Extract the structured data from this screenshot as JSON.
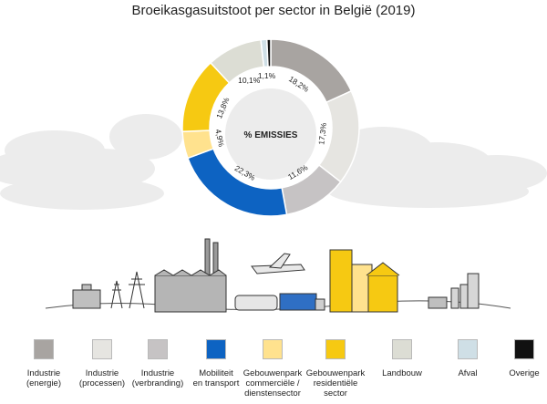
{
  "chart_data": {
    "type": "pie",
    "title": "Broeikasgasuitstoot per sector in België (2019)",
    "center_label": "% EMISSIES",
    "slices": [
      {
        "name": "Industrie (energie)",
        "value": 18.2,
        "label": "18,2%",
        "color": "#a8a4a1"
      },
      {
        "name": "Industrie (processen)",
        "value": 17.3,
        "label": "17,3%",
        "color": "#e6e5e1"
      },
      {
        "name": "Industrie (verbranding)",
        "value": 11.6,
        "label": "11,6%",
        "color": "#c6c3c4"
      },
      {
        "name": "Mobiliteit en transport",
        "value": 22.3,
        "label": "22,3%",
        "color": "#0d63c2"
      },
      {
        "name": "Gebouwenpark commerciële / dienstensector",
        "value": 4.9,
        "label": "4,9%",
        "color": "#ffe28e"
      },
      {
        "name": "Gebouwenpark residentiële sector",
        "value": 13.8,
        "label": "13,8%",
        "color": "#f6c912"
      },
      {
        "name": "Landbouw",
        "value": 10.1,
        "label": "10,1%",
        "color": "#dcddd4"
      },
      {
        "name": "Afval",
        "value": 1.1,
        "label": "1,1%",
        "color": "#cfdfe6"
      },
      {
        "name": "Overige",
        "value": 0.7,
        "label": "",
        "color": "#111111"
      }
    ]
  },
  "legend": [
    {
      "label": "Industrie\n(energie)",
      "color": "#a8a4a1"
    },
    {
      "label": "Industrie\n(processen)",
      "color": "#e6e5e1"
    },
    {
      "label": "Industrie\n(verbranding)",
      "color": "#c6c3c4"
    },
    {
      "label": "Mobiliteit\nen transport",
      "color": "#0d63c2"
    },
    {
      "label": "Gebouwenpark\ncommerciële /\ndienstensector",
      "color": "#ffe28e"
    },
    {
      "label": "Gebouwenpark\nresidentiële\nsector",
      "color": "#f6c912"
    },
    {
      "label": "Landbouw",
      "color": "#dcddd4"
    },
    {
      "label": "Afval",
      "color": "#cfdfe6"
    },
    {
      "label": "Overige",
      "color": "#111111"
    }
  ]
}
